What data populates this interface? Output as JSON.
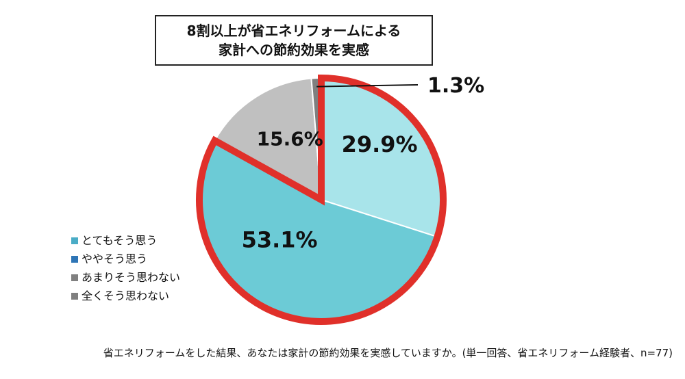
{
  "title": {
    "line1": "8割以上が省エネリフォームによる",
    "line2": "家計への節約効果を実感"
  },
  "chart_data": {
    "type": "pie",
    "title": "8割以上が省エネリフォームによる家計への節約効果を実感",
    "categories": [
      "とてもそう思う",
      "ややそう思う",
      "あまりそう思わない",
      "全くそう思わない"
    ],
    "values": [
      29.9,
      53.1,
      15.6,
      1.3
    ],
    "labels": [
      "29.9%",
      "53.1%",
      "15.6%",
      "1.3%"
    ],
    "colors": [
      "#a8e4ea",
      "#6ccbd6",
      "#c0c0c0",
      "#7f7f7f"
    ],
    "legend_colors": [
      "#4aacc6",
      "#2e75b6",
      "#808080",
      "#7f7f7f"
    ],
    "highlight_color": "#e0302a",
    "start_angle_deg": 0,
    "direction": "clockwise",
    "highlighted": [
      0,
      1
    ],
    "legend_position": "left"
  },
  "legend": [
    {
      "label": "とてもそう思う",
      "color": "#4aacc6"
    },
    {
      "label": "ややそう思う",
      "color": "#2e75b6"
    },
    {
      "label": "あまりそう思わない",
      "color": "#808080"
    },
    {
      "label": "全くそう思わない",
      "color": "#7f7f7f"
    }
  ],
  "caption": "省エネリフォームをした結果、あなたは家計の節約効果を実感していますか。(単一回答、省エネリフォーム経験者、n=77)"
}
